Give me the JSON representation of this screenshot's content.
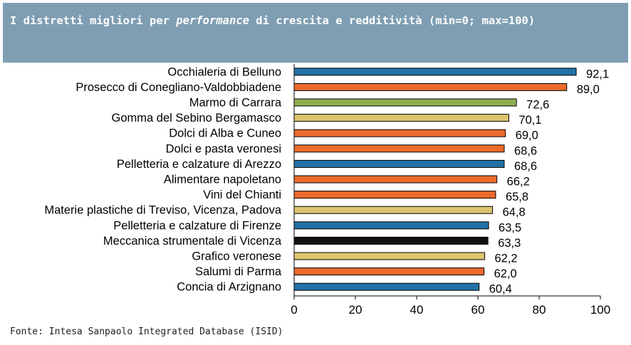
{
  "title": {
    "part1": "I distretti migliori per ",
    "italic": "performance",
    "part2": " di crescita e redditività (min=0; max=100)"
  },
  "source": "Fonte: Intesa Sanpaolo Integrated Database (ISID)",
  "colors": {
    "blue": "#2272a6",
    "orange": "#ec6a2c",
    "green": "#8ead4f",
    "yellow": "#dcc56e",
    "black": "#111111",
    "title_bg": "#7f9eb3"
  },
  "chart_data": {
    "type": "bar",
    "orientation": "horizontal",
    "categories": [
      "Occhialeria di Belluno",
      "Prosecco di Conegliano-Valdobbiadene",
      "Marmo di Carrara",
      "Gomma del Sebino Bergamasco",
      "Dolci di Alba e Cuneo",
      "Dolci e pasta veronesi",
      "Pelletteria e calzature di Arezzo",
      "Alimentare napoletano",
      "Vini del Chianti",
      "Materie plastiche di Treviso, Vicenza, Padova",
      "Pelletteria e calzature di Firenze",
      "Meccanica strumentale di Vicenza",
      "Grafico veronese",
      "Salumi di Parma",
      "Concia di Arzignano"
    ],
    "values": [
      92.1,
      89.0,
      72.6,
      70.1,
      69.0,
      68.6,
      68.6,
      66.2,
      65.8,
      64.8,
      63.5,
      63.3,
      62.2,
      62.0,
      60.4
    ],
    "value_labels": [
      "92,1",
      "89,0",
      "72,6",
      "70,1",
      "69,0",
      "68,6",
      "68,6",
      "66,2",
      "65,8",
      "64,8",
      "63,5",
      "63,3",
      "62,2",
      "62,0",
      "60,4"
    ],
    "bar_colors": [
      "blue",
      "orange",
      "green",
      "yellow",
      "orange",
      "orange",
      "blue",
      "orange",
      "orange",
      "yellow",
      "blue",
      "black",
      "yellow",
      "orange",
      "blue"
    ],
    "xlim": [
      0,
      100
    ],
    "xticks": [
      0,
      20,
      40,
      60,
      80,
      100
    ],
    "grid": false,
    "legend": "none"
  }
}
